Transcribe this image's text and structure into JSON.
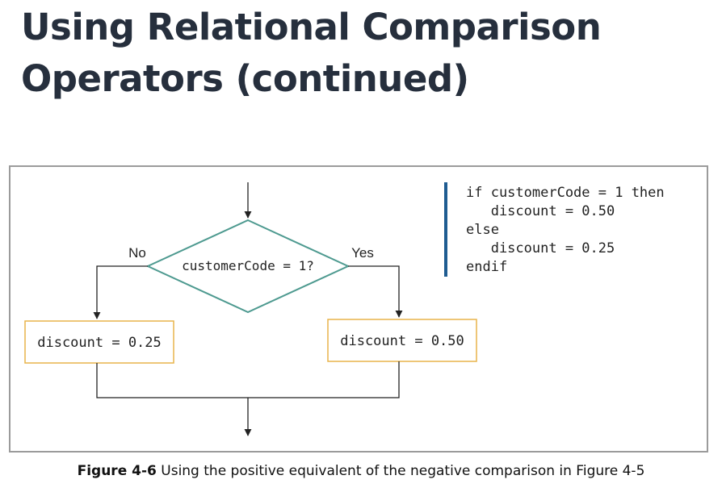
{
  "slide": {
    "title_line1": "Using Relational Comparison",
    "title_line2": "Operators (continued)"
  },
  "flowchart": {
    "decision": "customerCode = 1?",
    "no_label": "No",
    "yes_label": "Yes",
    "left_process": "discount = 0.25",
    "right_process": "discount = 0.50",
    "colors": {
      "decision_border": "#4e9a90",
      "process_border": "#e8b44a",
      "line": "#222222",
      "pseudocode_bar": "#1f5c91"
    }
  },
  "pseudocode": {
    "lines": [
      "if customerCode = 1 then",
      "   discount = 0.50",
      "else",
      "   discount = 0.25",
      "endif"
    ]
  },
  "caption": {
    "label": "Figure 4-6",
    "text": " Using the positive equivalent of the negative comparison in Figure 4-5"
  }
}
